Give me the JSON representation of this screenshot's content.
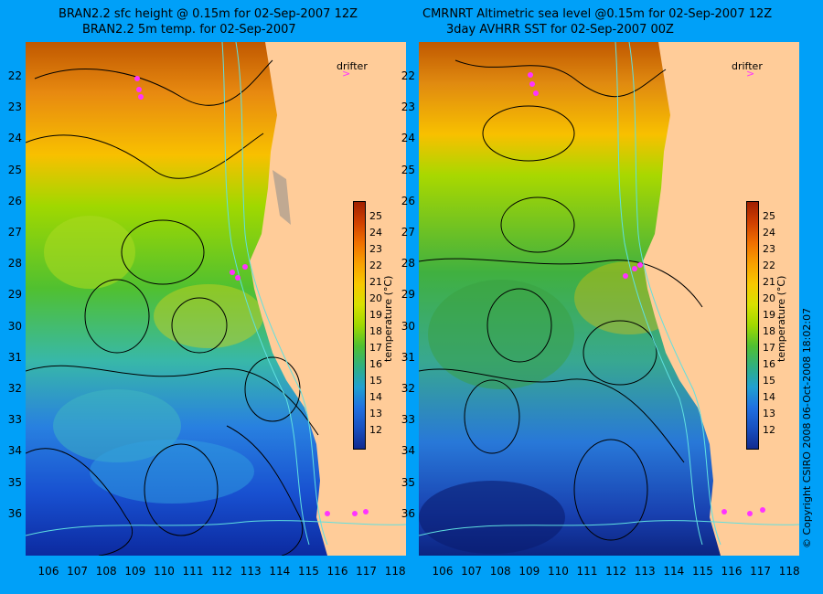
{
  "left_panel": {
    "title_line1": "BRAN2.2 sfc height @ 0.15m for 02-Sep-2007 12Z",
    "title_line2": "BRAN2.2 5m temp. for 02-Sep-2007",
    "legend_label": "drifter"
  },
  "right_panel": {
    "title_line1": "CMRNRT Altimetric sea level  @0.15m  for 02-Sep-2007 12Z",
    "title_line2": "3day AVHRR SST for 02-Sep-2007 00Z",
    "legend_label": "drifter"
  },
  "lat_labels": [
    "22",
    "23",
    "24",
    "25",
    "26",
    "27",
    "28",
    "29",
    "30",
    "31",
    "32",
    "33",
    "34",
    "35",
    "36"
  ],
  "lon_labels": [
    "106",
    "107",
    "108",
    "109",
    "110",
    "111",
    "112",
    "113",
    "114",
    "115",
    "116",
    "117",
    "118"
  ],
  "colorbar": {
    "ticks": [
      "25",
      "24",
      "23",
      "22",
      "21",
      "20",
      "19",
      "18",
      "17",
      "16",
      "15",
      "14",
      "13",
      "12"
    ],
    "title": "temperature (°C)"
  },
  "copyright": "© Copyright CSIRO 2008    06-Oct-2008 18:02:07",
  "colors": {
    "background": "#00a0f8",
    "land": "#ffcc99",
    "drifter": "#ff33ff",
    "contour": "#000000",
    "isobath": "#60e0e0"
  }
}
